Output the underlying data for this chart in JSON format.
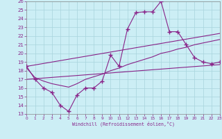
{
  "xlabel": "Windchill (Refroidissement éolien,°C)",
  "ylabel": "",
  "bg_color": "#cceef5",
  "line_color": "#882288",
  "grid_color": "#b0d8e0",
  "xmin": 0,
  "xmax": 23,
  "ymin": 13,
  "ymax": 26,
  "line1_x": [
    0,
    1,
    2,
    3,
    4,
    5,
    6,
    7,
    8,
    9,
    10,
    11,
    12,
    13,
    14,
    15,
    16,
    17,
    18,
    19,
    20,
    21,
    22,
    23
  ],
  "line1_y": [
    18.5,
    17.0,
    16.0,
    15.5,
    14.0,
    13.3,
    15.2,
    16.0,
    16.0,
    16.8,
    19.8,
    18.5,
    22.8,
    24.7,
    24.8,
    24.8,
    26.0,
    22.5,
    22.5,
    21.0,
    19.5,
    19.0,
    18.8,
    19.0
  ],
  "line2_x": [
    0,
    1,
    2,
    3,
    4,
    5,
    6,
    7,
    8,
    9,
    10,
    11,
    12,
    13,
    14,
    15,
    16,
    17,
    18,
    19,
    20,
    21,
    22,
    23
  ],
  "line2_y": [
    18.3,
    17.2,
    16.8,
    16.5,
    16.3,
    16.1,
    16.5,
    17.0,
    17.3,
    17.6,
    18.0,
    18.3,
    18.7,
    19.0,
    19.3,
    19.6,
    20.0,
    20.2,
    20.5,
    20.7,
    21.0,
    21.2,
    21.4,
    21.6
  ],
  "line3_x": [
    0,
    23
  ],
  "line3_y": [
    18.5,
    22.3
  ],
  "line4_x": [
    0,
    23
  ],
  "line4_y": [
    17.0,
    18.7
  ]
}
